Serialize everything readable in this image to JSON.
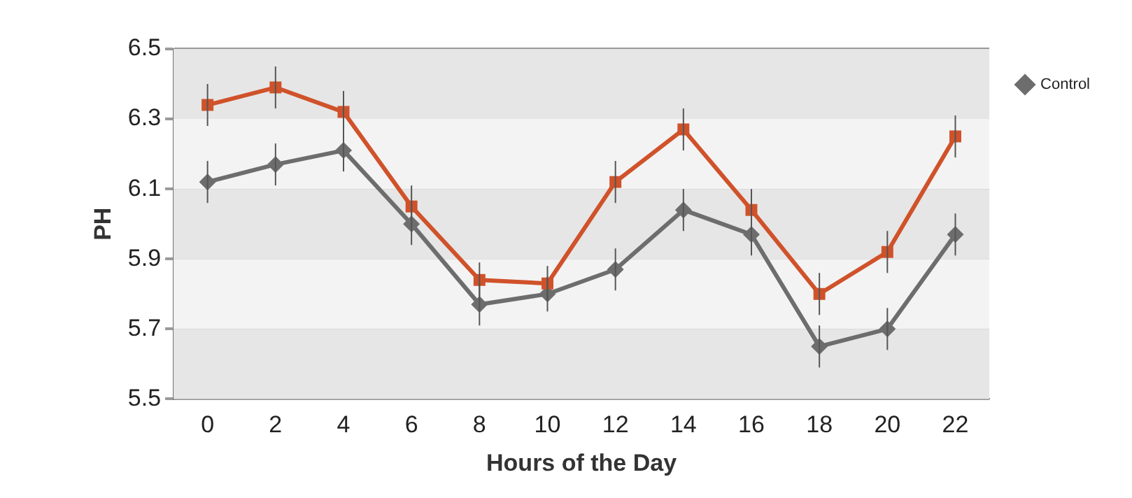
{
  "chart_data": {
    "type": "line",
    "xlabel": "Hours of the Day",
    "ylabel": "PH",
    "categories": [
      "0",
      "2",
      "4",
      "6",
      "8",
      "10",
      "12",
      "14",
      "16",
      "18",
      "20",
      "22"
    ],
    "series": [
      {
        "color": "#d0522a",
        "marker": "square",
        "values": [
          6.34,
          6.39,
          6.32,
          6.05,
          5.84,
          5.83,
          6.12,
          6.27,
          6.04,
          5.8,
          5.92,
          6.25
        ],
        "errors": [
          0.06,
          0.06,
          0.06,
          0.06,
          0.05,
          0.05,
          0.06,
          0.06,
          0.06,
          0.06,
          0.06,
          0.06
        ]
      },
      {
        "name": "Control",
        "color": "#6d6d6d",
        "marker": "diamond",
        "values": [
          6.12,
          6.17,
          6.21,
          6.0,
          5.77,
          5.8,
          5.87,
          6.04,
          5.97,
          5.65,
          5.7,
          5.97
        ],
        "errors": [
          0.06,
          0.06,
          0.06,
          0.06,
          0.06,
          0.05,
          0.06,
          0.06,
          0.06,
          0.06,
          0.06,
          0.06
        ]
      }
    ],
    "ylim": [
      5.5,
      6.5
    ],
    "yticks": [
      5.5,
      5.7,
      5.9,
      6.1,
      6.3,
      6.5
    ],
    "grid": "y",
    "legend": "right",
    "line_style": "solid"
  }
}
